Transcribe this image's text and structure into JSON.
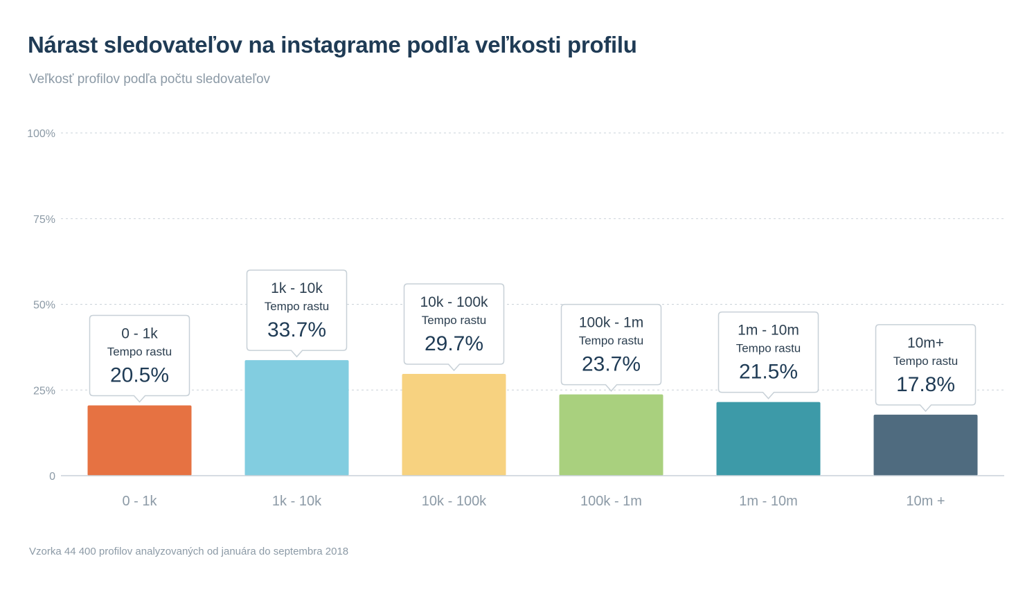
{
  "title": "Nárast sledovateľov na instagrame podľa veľkosti profilu",
  "subtitle": "Veľkosť profilov podľa počtu sledovateľov",
  "footnote": "Vzorka 44 400 profilov analyzovaných od januára do septembra 2018",
  "chart_data": {
    "type": "bar",
    "categories": [
      "0 - 1k",
      "1k - 10k",
      "10k - 100k",
      "100k - 1m",
      "1m - 10m",
      "10m +"
    ],
    "values": [
      20.5,
      33.7,
      29.7,
      23.7,
      21.5,
      17.8
    ],
    "colors": [
      "#e67242",
      "#82cde0",
      "#f7d280",
      "#a9d07e",
      "#3d9aa8",
      "#4f6b7f"
    ],
    "callouts": [
      {
        "category": "0 - 1k",
        "label": "Tempo rastu",
        "value": "20.5%"
      },
      {
        "category": "1k - 10k",
        "label": "Tempo rastu",
        "value": "33.7%"
      },
      {
        "category": "10k - 100k",
        "label": "Tempo rastu",
        "value": "29.7%"
      },
      {
        "category": "100k - 1m",
        "label": "Tempo rastu",
        "value": "23.7%"
      },
      {
        "category": "1m - 10m",
        "label": "Tempo rastu",
        "value": "21.5%"
      },
      {
        "category": "10m+",
        "label": "Tempo rastu",
        "value": "17.8%"
      }
    ],
    "yticks": [
      "0",
      "25%",
      "50%",
      "75%",
      "100%"
    ],
    "ylim": [
      0,
      100
    ],
    "grid": true
  }
}
